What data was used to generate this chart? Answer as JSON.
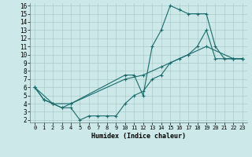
{
  "title": "",
  "xlabel": "Humidex (Indice chaleur)",
  "bg_color": "#cce8e8",
  "grid_color": "#aacccc",
  "line_color": "#1a6b6b",
  "xlim": [
    -0.5,
    23.5
  ],
  "ylim": [
    1.7,
    16.3
  ],
  "xticks": [
    0,
    1,
    2,
    3,
    4,
    5,
    6,
    7,
    8,
    9,
    10,
    11,
    12,
    13,
    14,
    15,
    16,
    17,
    18,
    19,
    20,
    21,
    22,
    23
  ],
  "yticks": [
    2,
    3,
    4,
    5,
    6,
    7,
    8,
    9,
    10,
    11,
    12,
    13,
    14,
    15,
    16
  ],
  "line1_x": [
    0,
    1,
    2,
    3,
    4,
    10,
    11,
    12,
    13,
    14,
    15,
    16,
    17,
    18,
    19,
    20,
    21,
    22,
    23
  ],
  "line1_y": [
    6,
    4.5,
    4,
    3.5,
    4,
    7.5,
    7.5,
    5,
    11,
    13,
    16,
    15.5,
    15,
    15,
    15,
    11,
    9.5,
    9.5,
    9.5
  ],
  "line2_x": [
    0,
    1,
    2,
    3,
    4,
    5,
    6,
    7,
    8,
    9,
    10,
    11,
    12,
    13,
    14,
    15,
    16,
    17,
    18,
    19,
    20,
    22,
    23
  ],
  "line2_y": [
    6,
    4.5,
    4,
    3.5,
    3.5,
    2,
    2.5,
    2.5,
    2.5,
    2.5,
    4,
    5,
    5.5,
    7,
    7.5,
    9,
    9.5,
    10,
    11,
    13,
    9.5,
    9.5,
    9.5
  ],
  "line3_x": [
    0,
    2,
    4,
    10,
    12,
    14,
    17,
    19,
    22,
    23
  ],
  "line3_y": [
    6,
    4,
    4,
    7,
    7.5,
    8.5,
    10,
    11,
    9.5,
    9.5
  ]
}
